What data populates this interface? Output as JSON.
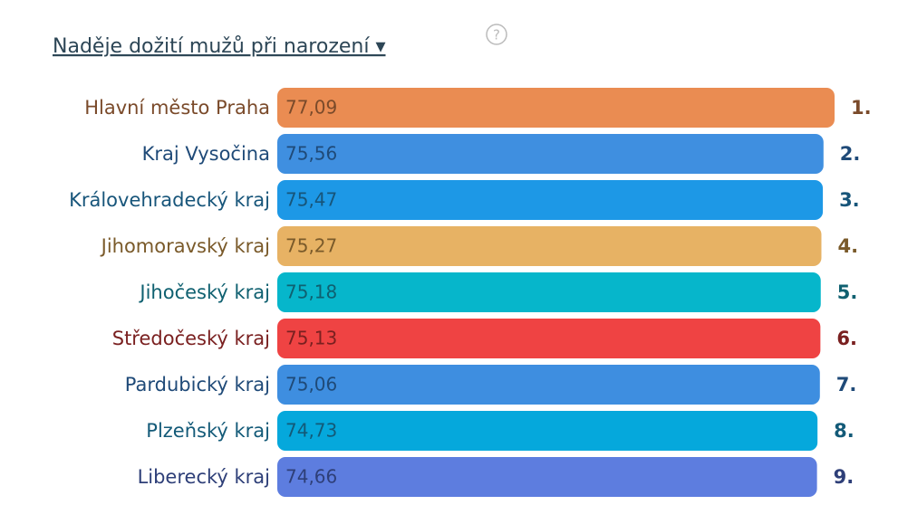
{
  "chart_data": {
    "type": "bar",
    "orientation": "horizontal",
    "title": "Naděje dožití mužů při narození ▾",
    "help_icon": "?",
    "categories": [
      "Hlavní město Praha",
      "Kraj Vysočina",
      "Královehradecký kraj",
      "Jihomoravský kraj",
      "Jihočeský kraj",
      "Středočeský kraj",
      "Pardubický kraj",
      "Plzeňský kraj",
      "Liberecký kraj"
    ],
    "values": [
      77.09,
      75.56,
      75.47,
      75.27,
      75.18,
      75.13,
      75.06,
      74.73,
      74.66
    ],
    "value_labels": [
      "77,09",
      "75,56",
      "75,47",
      "75,27",
      "75,18",
      "75,13",
      "75,06",
      "74,73",
      "74,66"
    ],
    "ranks": [
      "1.",
      "2.",
      "3.",
      "4.",
      "5.",
      "6.",
      "7.",
      "8.",
      "9."
    ],
    "colors": [
      "#ea8c52",
      "#3f8fe0",
      "#1d98e6",
      "#e7b264",
      "#06b6cb",
      "#ef4343",
      "#3e8ee0",
      "#05a8dc",
      "#5d7ddf"
    ],
    "label_colors": [
      "#7a4a2a",
      "#1f4a78",
      "#17557a",
      "#7a5a2a",
      "#0f6070",
      "#7a2020",
      "#1f4a78",
      "#135a78",
      "#2e3f78"
    ]
  }
}
